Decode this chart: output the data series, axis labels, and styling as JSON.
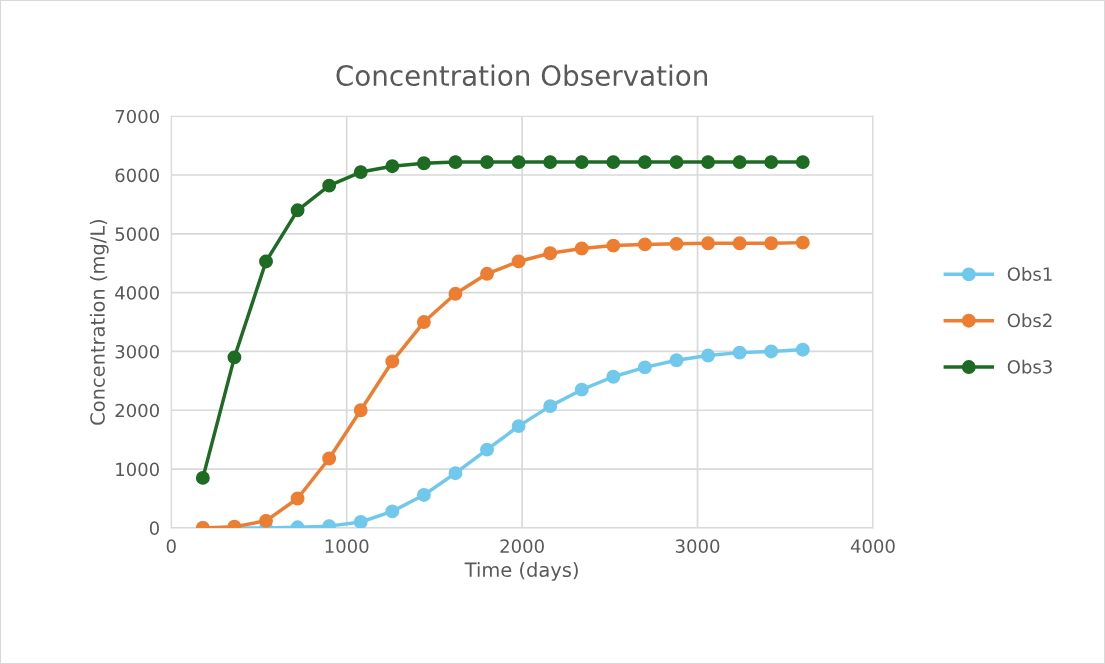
{
  "chart_data": {
    "type": "line",
    "title": "Concentration Observation",
    "xlabel": "Time (days)",
    "ylabel": "Concentration (mg/L)",
    "x": [
      180,
      360,
      540,
      720,
      900,
      1080,
      1260,
      1440,
      1620,
      1800,
      1980,
      2160,
      2340,
      2520,
      2700,
      2880,
      3060,
      3240,
      3420,
      3600
    ],
    "series": [
      {
        "name": "Obs1",
        "color": "#70c8ec",
        "values": [
          0,
          0,
          0,
          10,
          30,
          100,
          280,
          560,
          930,
          1330,
          1730,
          2070,
          2350,
          2570,
          2730,
          2850,
          2930,
          2980,
          3000,
          3030
        ]
      },
      {
        "name": "Obs2",
        "color": "#ed7d31",
        "values": [
          0,
          20,
          120,
          500,
          1180,
          2000,
          2830,
          3500,
          3980,
          4320,
          4530,
          4670,
          4750,
          4800,
          4820,
          4830,
          4840,
          4840,
          4840,
          4850
        ]
      },
      {
        "name": "Obs3",
        "color": "#1e6b24",
        "values": [
          850,
          2900,
          4530,
          5400,
          5820,
          6050,
          6150,
          6200,
          6220,
          6220,
          6220,
          6220,
          6220,
          6220,
          6220,
          6220,
          6220,
          6220,
          6220,
          6220
        ]
      }
    ],
    "xlim": [
      0,
      4000
    ],
    "xticks": [
      0,
      1000,
      2000,
      3000,
      4000
    ],
    "ylim": [
      0,
      7000
    ],
    "yticks": [
      0,
      1000,
      2000,
      3000,
      4000,
      5000,
      6000,
      7000
    ],
    "grid": true,
    "legend": "right",
    "marker": "circle",
    "line_style": "solid"
  }
}
